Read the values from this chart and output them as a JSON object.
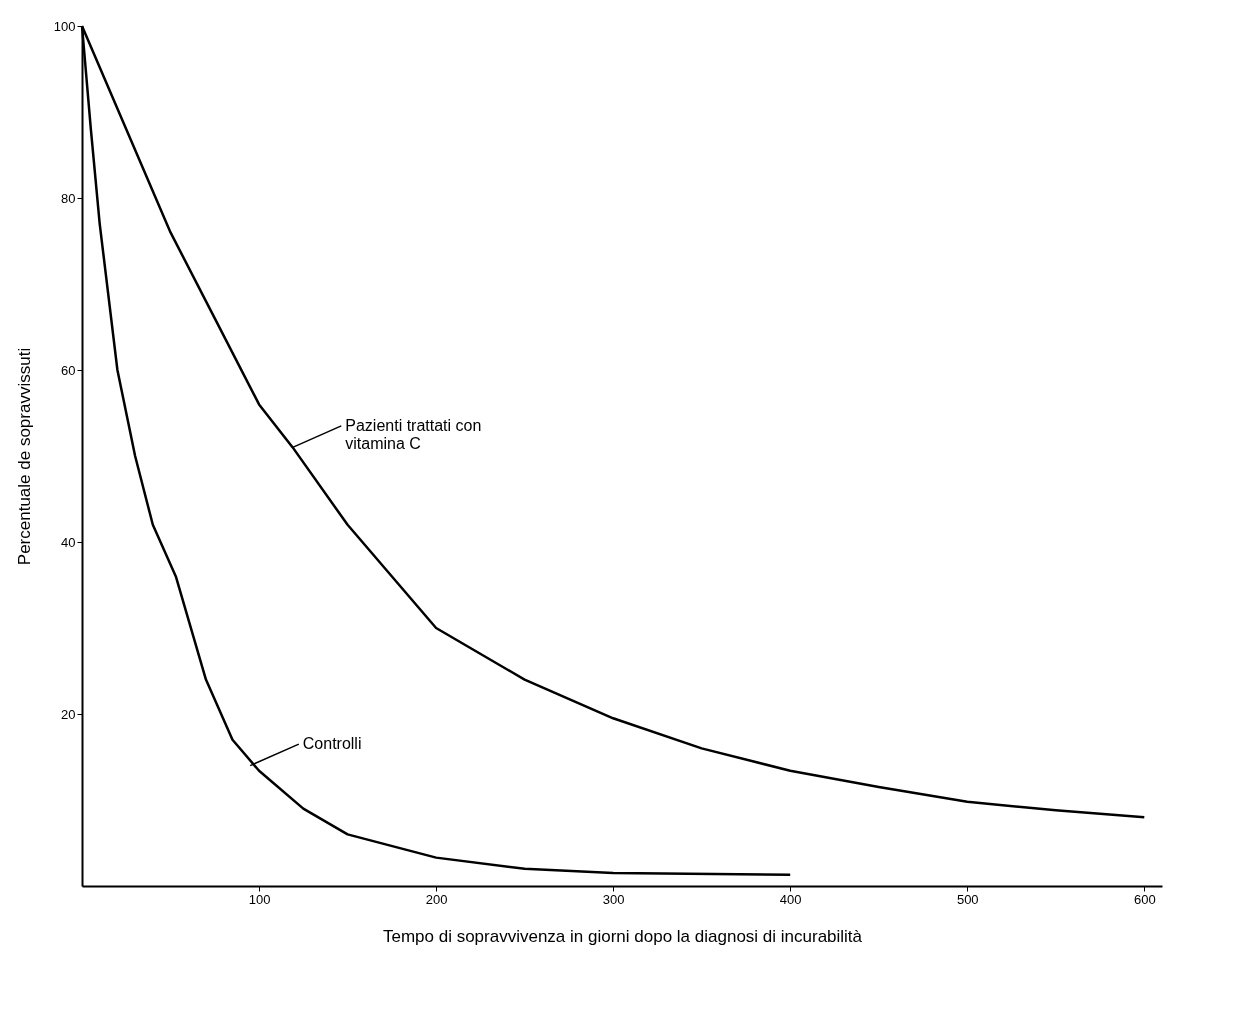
{
  "chart_data": {
    "type": "line",
    "xlabel": "Tempo di sopravvivenza in giorni dopo la diagnosi di incurabilità",
    "ylabel": "Percentuale de sopravvissuti",
    "xlim": [
      0,
      610
    ],
    "ylim": [
      0,
      100
    ],
    "xticks": [
      100,
      200,
      300,
      400,
      500,
      600
    ],
    "yticks": [
      20,
      40,
      60,
      80,
      100
    ],
    "grid": false,
    "series": [
      {
        "color": "#000000",
        "x": [
          0,
          25,
          50,
          75,
          100,
          119,
          150,
          200,
          250,
          300,
          350,
          400,
          450,
          500,
          550,
          600
        ],
        "values": [
          100,
          88,
          76,
          66,
          56,
          51,
          42,
          30,
          24,
          19.5,
          16,
          13.4,
          11.5,
          9.8,
          8.8,
          8
        ]
      },
      {
        "color": "#000000",
        "x": [
          0,
          5,
          10,
          20,
          30,
          40,
          53,
          70,
          85,
          100,
          125,
          150,
          200,
          250,
          300,
          400
        ],
        "values": [
          100,
          88,
          77,
          60,
          50,
          42,
          36,
          24,
          17,
          13.4,
          9,
          6,
          3.3,
          2,
          1.5,
          1.3
        ]
      }
    ],
    "annotations": [
      {
        "text": "Pazienti trattati con\nvitamina C",
        "x": 119,
        "y": 51
      },
      {
        "text": "Controlli",
        "x": 95,
        "y": 14
      }
    ]
  }
}
